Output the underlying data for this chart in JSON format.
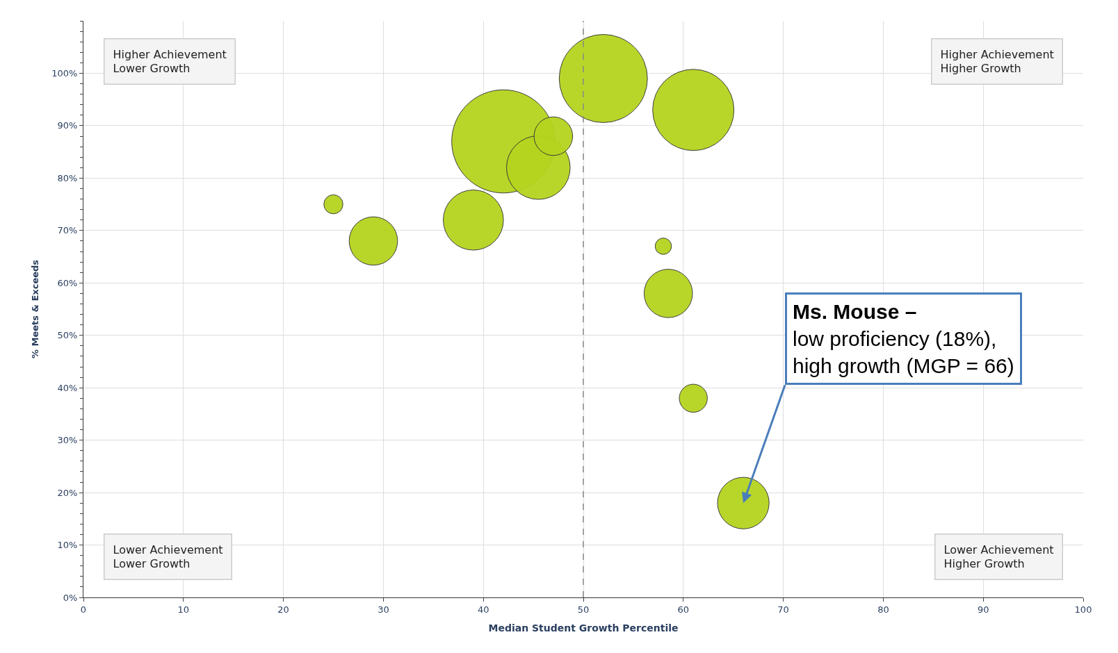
{
  "chart_data": {
    "type": "bubble",
    "xlabel": "Median Student Growth Percentile",
    "ylabel": "% Meets & Exceeds",
    "x": [
      25,
      29,
      39,
      42,
      45.5,
      47,
      52,
      61,
      58,
      58.5,
      61,
      66
    ],
    "values": [
      75,
      68,
      72,
      87,
      82,
      88,
      99,
      93,
      67,
      58,
      38,
      18
    ],
    "sizes": [
      0.034,
      0.22,
      0.34,
      1,
      0.38,
      0.14,
      0.73,
      0.62,
      0.025,
      0.22,
      0.074,
      0.25
    ],
    "color": "#b5d41f",
    "xlim": [
      0,
      100
    ],
    "xticks": [
      0,
      10,
      20,
      30,
      40,
      50,
      60,
      70,
      80,
      90,
      100
    ],
    "ylim": [
      0,
      110
    ],
    "yticks": [
      {
        "value": 0,
        "label": "0%"
      },
      {
        "value": 10,
        "label": "10%"
      },
      {
        "value": 20,
        "label": "20%"
      },
      {
        "value": 30,
        "label": "30%"
      },
      {
        "value": 40,
        "label": "40%"
      },
      {
        "value": 50,
        "label": "50%"
      },
      {
        "value": 60,
        "label": "60%"
      },
      {
        "value": 70,
        "label": "70%"
      },
      {
        "value": 80,
        "label": "80%"
      },
      {
        "value": 90,
        "label": "90%"
      },
      {
        "value": 100,
        "label": "100%"
      }
    ],
    "grid": true,
    "marker": "circle",
    "ref_lines": [
      {
        "axis": "x",
        "value": 50,
        "line_style": "dashed",
        "color": "#888888"
      }
    ],
    "annotations": [
      "Higher Achievement\nLower Growth",
      "Higher Achievement\nHigher Growth",
      "Lower Achievement\nLower Growth",
      "Lower Achievement\nHigher Growth",
      {
        "text": "Ms. Mouse –\nlow proficiency (18%),\nhigh growth (MGP = 66)",
        "x": 66,
        "y": 18
      }
    ]
  }
}
